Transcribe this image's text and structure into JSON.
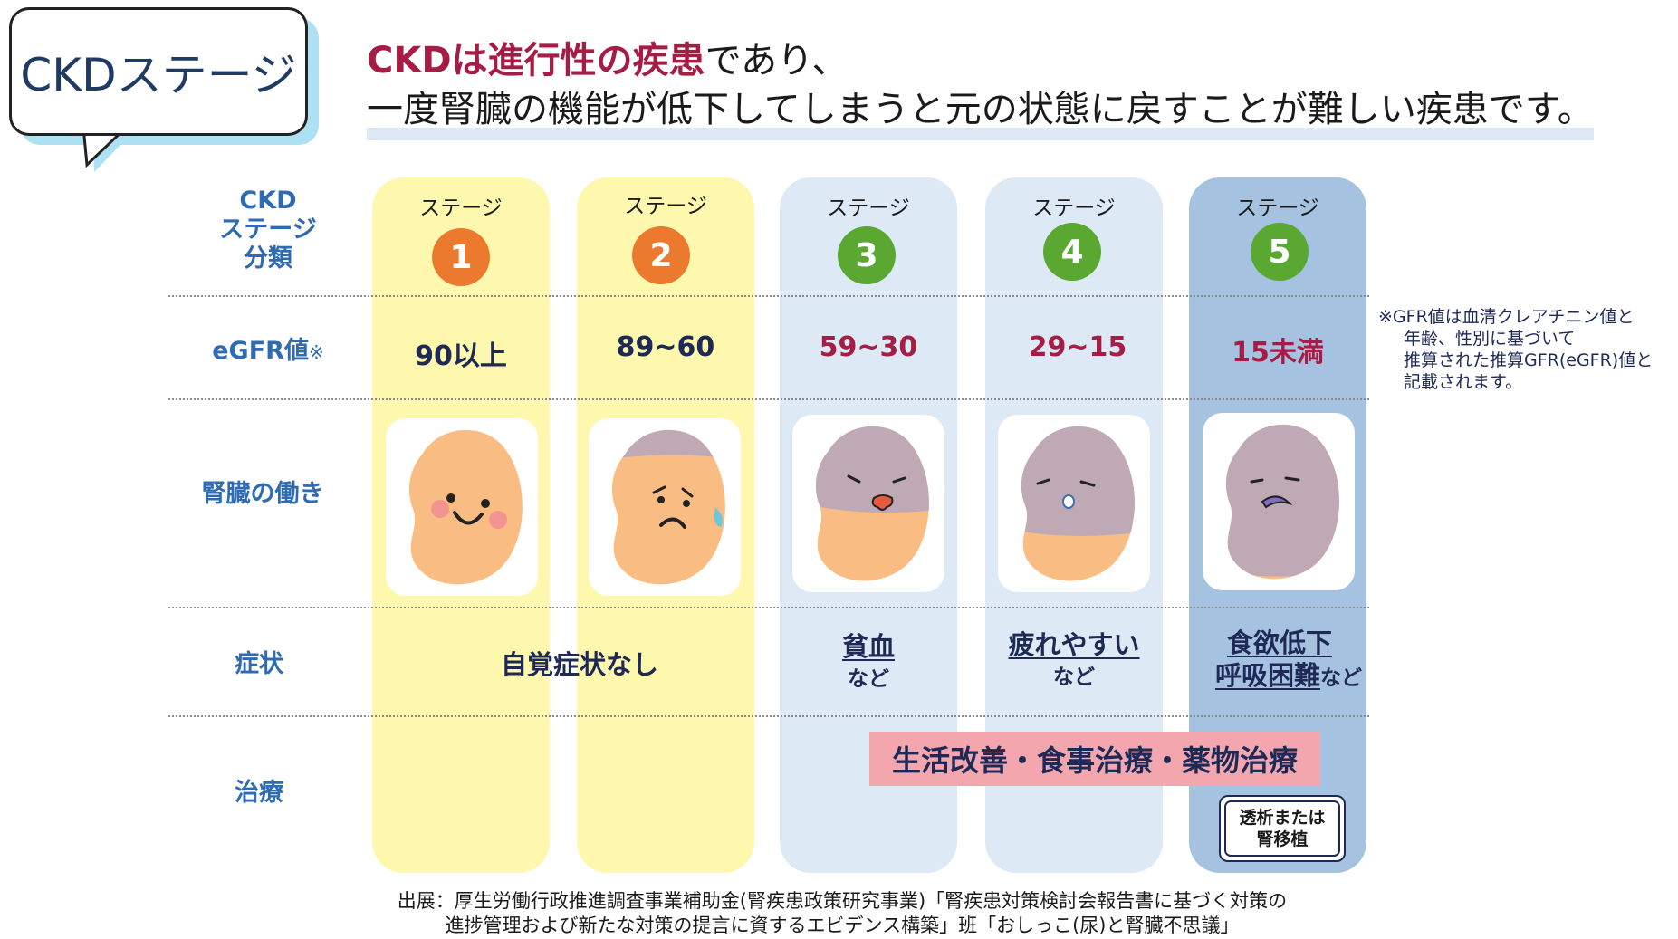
{
  "title_bubble": "CKDステージ",
  "headline": {
    "emphasis": "CKDは進行性の疾患",
    "rest_line1": "であり、",
    "line2": "一度腎臓の機能が低下してしまうと元の状態に戻すことが難しい疾患です。"
  },
  "row_labels": {
    "stage": "CKD\nステージ\n分類",
    "egfr": "eGFR値",
    "egfr_mark": "※",
    "kidney": "腎臓の働き",
    "symptom": "症状",
    "treatment": "治療"
  },
  "stages": [
    {
      "label": "ステージ",
      "number": "1",
      "egfr": "90以上",
      "number_color": "#ec7a2e",
      "egfr_color": "#1e2a55",
      "column_color": "#fdf8ae"
    },
    {
      "label": "ステージ",
      "number": "2",
      "egfr": "89~60",
      "number_color": "#ec7a2e",
      "egfr_color": "#1e2a55",
      "column_color": "#fdf8ae"
    },
    {
      "label": "ステージ",
      "number": "3",
      "egfr": "59~30",
      "number_color": "#5aa832",
      "egfr_color": "#a51d45",
      "column_color": "#dde9f5"
    },
    {
      "label": "ステージ",
      "number": "4",
      "egfr": "29~15",
      "number_color": "#5aa832",
      "egfr_color": "#a51d45",
      "column_color": "#dde9f5"
    },
    {
      "label": "ステージ",
      "number": "5",
      "egfr": "15未満",
      "number_color": "#5aa832",
      "egfr_color": "#a51d45",
      "column_color": "#a5c3e0"
    }
  ],
  "symptoms": {
    "stage1_2": "自覚症状なし",
    "stage3_main": "貧血",
    "stage3_sub": "など",
    "stage4_main": "疲れやすい",
    "stage4_sub": "など",
    "stage5_main1": "食欲低下",
    "stage5_main2": "呼吸困難",
    "stage5_sub": "など"
  },
  "treatment": {
    "main": "生活改善・食事治療・薬物治療",
    "dialysis_line1": "透析または",
    "dialysis_line2": "腎移植"
  },
  "note": {
    "line1": "※GFR値は血清クレアチニン値と",
    "line2": "年齢、性別に基づいて",
    "line3": "推算された推算GFR(eGFR)値と",
    "line4": "記載されます。"
  },
  "source": {
    "line1": "出展：厚生労働行政推進調査事業補助金(腎疾患政策研究事業)「腎疾患対策検討会報告書に基づく対策の",
    "line2": "進捗管理および新たな対策の提言に資するエビデンス構築」班「おしっこ(尿)と腎臓不思議」"
  },
  "colors": {
    "accent_red": "#a51d45",
    "label_blue": "#2f6bb3",
    "kidney_healthy": "#f9bd84",
    "kidney_damaged": "#bfa9b4"
  }
}
